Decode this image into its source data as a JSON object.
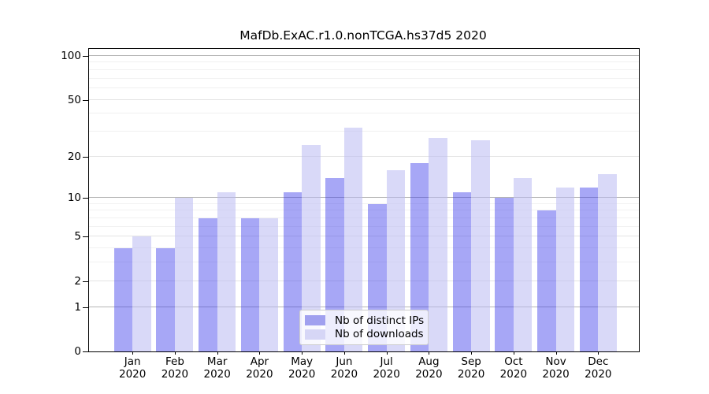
{
  "chart": {
    "title": "MafDb.ExAC.r1.0.nonTCGA.hs37d5 2020"
  },
  "chart_data": {
    "type": "bar",
    "title": "MafDb.ExAC.r1.0.nonTCGA.hs37d5 2020",
    "categories": [
      "Jan 2020",
      "Feb 2020",
      "Mar 2020",
      "Apr 2020",
      "May 2020",
      "Jun 2020",
      "Jul 2020",
      "Aug 2020",
      "Sep 2020",
      "Oct 2020",
      "Nov 2020",
      "Dec 2020"
    ],
    "series": [
      {
        "name": "Nb of distinct IPs",
        "legend_color": "#a0a0ef",
        "fill": "rgba(60,60,235,0.45)",
        "values": [
          4,
          4,
          7,
          7,
          11,
          14,
          9,
          18,
          11,
          10,
          8,
          12
        ]
      },
      {
        "name": "Nb of downloads",
        "legend_color": "#d6d6f6",
        "fill": "rgba(185,185,242,0.55)",
        "values": [
          5,
          10,
          11,
          7,
          24,
          32,
          16,
          27,
          26,
          14,
          12,
          15
        ]
      }
    ],
    "xlabel": "",
    "ylabel": "",
    "y_scale": "log1p",
    "y_ticks": [
      0,
      1,
      2,
      5,
      10,
      20,
      50,
      100
    ],
    "y_decade_ticks": [
      1,
      10,
      100
    ],
    "y_minor_ticks": [
      3,
      4,
      6,
      7,
      8,
      9,
      30,
      40,
      60,
      70,
      80,
      90
    ],
    "ylim": [
      0,
      112
    ],
    "grid": "horizontal",
    "legend_position": "lower center",
    "colors": {
      "grid_decade": "#b4b4b4",
      "grid_major": "#e4e4e4",
      "grid_minor": "#f1f1f1",
      "spine": "#000000",
      "text": "#000000"
    }
  }
}
